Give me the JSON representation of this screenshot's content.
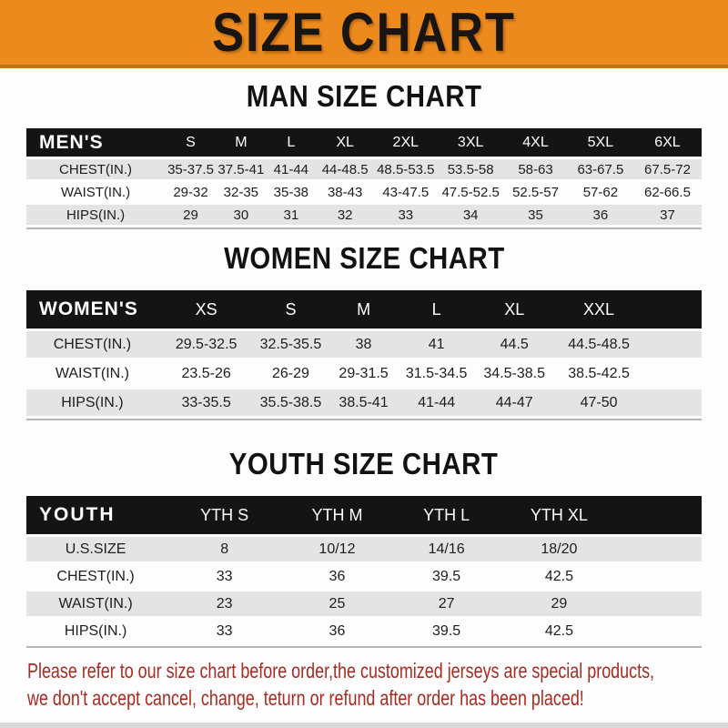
{
  "banner": {
    "title": "SIZE CHART"
  },
  "colors": {
    "banner_orange": "#ED8A1E",
    "banner_edge": "#C4720D",
    "header_black": "#141414",
    "row_gray": "#E4E4E4",
    "note_red": "#A62C22"
  },
  "sections": [
    {
      "title": "MAN SIZE CHART",
      "table": {
        "header_label": "MEN'S",
        "columns": [
          "S",
          "M",
          "L",
          "XL",
          "2XL",
          "3XL",
          "4XL",
          "5XL",
          "6XL"
        ],
        "rows": [
          {
            "label": "CHEST(IN.)",
            "values": [
              "35-37.5",
              "37.5-41",
              "41-44",
              "44-48.5",
              "48.5-53.5",
              "53.5-58",
              "58-63",
              "63-67.5",
              "67.5-72"
            ]
          },
          {
            "label": "WAIST(IN.)",
            "values": [
              "29-32",
              "32-35",
              "35-38",
              "38-43",
              "43-47.5",
              "47.5-52.5",
              "52.5-57",
              "57-62",
              "62-66.5"
            ]
          },
          {
            "label": "HIPS(IN.)",
            "values": [
              "29",
              "30",
              "31",
              "32",
              "33",
              "34",
              "35",
              "36",
              "37"
            ]
          }
        ]
      }
    },
    {
      "title": "WOMEN SIZE CHART",
      "table": {
        "header_label": "WOMEN'S",
        "columns": [
          "XS",
          "S",
          "M",
          "L",
          "XL",
          "XXL"
        ],
        "rows": [
          {
            "label": "CHEST(IN.)",
            "values": [
              "29.5-32.5",
              "32.5-35.5",
              "38",
              "41",
              "44.5",
              "44.5-48.5"
            ]
          },
          {
            "label": "WAIST(IN.)",
            "values": [
              "23.5-26",
              "26-29",
              "29-31.5",
              "31.5-34.5",
              "34.5-38.5",
              "38.5-42.5"
            ]
          },
          {
            "label": "HIPS(IN.)",
            "values": [
              "33-35.5",
              "35.5-38.5",
              "38.5-41",
              "41-44",
              "44-47",
              "47-50"
            ]
          }
        ]
      }
    },
    {
      "title": "YOUTH SIZE CHART",
      "table": {
        "header_label": "YOUTH",
        "columns": [
          "YTH S",
          "YTH M",
          "YTH L",
          "YTH XL"
        ],
        "rows": [
          {
            "label": "U.S.SIZE",
            "values": [
              "8",
              "10/12",
              "14/16",
              "18/20"
            ]
          },
          {
            "label": "CHEST(IN.)",
            "values": [
              "33",
              "36",
              "39.5",
              "42.5"
            ]
          },
          {
            "label": "WAIST(IN.)",
            "values": [
              "23",
              "25",
              "27",
              "29"
            ]
          },
          {
            "label": "HIPS(IN.)",
            "values": [
              "33",
              "36",
              "39.5",
              "42.5"
            ]
          }
        ]
      }
    }
  ],
  "note": {
    "lines": [
      "Please refer to our size chart before order,the customized jerseys are special products,",
      "we don't accept cancel, change, teturn or refund after order has been placed!"
    ]
  }
}
